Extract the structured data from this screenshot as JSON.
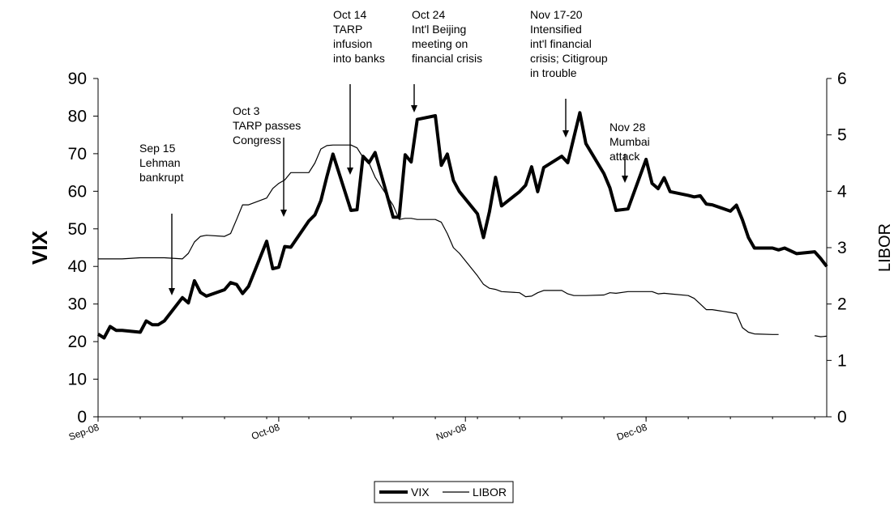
{
  "chart_data": {
    "type": "line",
    "title": "",
    "x_ticks": [
      "Sep-08",
      "Oct-08",
      "Nov-08",
      "Dec-08"
    ],
    "left_axis": {
      "label": "VIX",
      "ylim": [
        0,
        90
      ],
      "ticks": [
        "0",
        "10",
        "20",
        "30",
        "40",
        "50",
        "60",
        "70",
        "80",
        "90"
      ]
    },
    "right_axis": {
      "label": "LIBOR",
      "ylim": [
        0,
        6
      ],
      "ticks": [
        "0",
        "1",
        "2",
        "3",
        "4",
        "5",
        "6"
      ]
    },
    "legend": {
      "placement": "bottom-center"
    },
    "series": [
      {
        "name": "VIX",
        "axis": "left",
        "style": "thick",
        "points": [
          [
            "2008-09-01",
            22
          ],
          [
            "2008-09-02",
            21
          ],
          [
            "2008-09-03",
            24
          ],
          [
            "2008-09-04",
            23
          ],
          [
            "2008-09-05",
            23
          ],
          [
            "2008-09-08",
            22.5
          ],
          [
            "2008-09-09",
            25.5
          ],
          [
            "2008-09-10",
            24.5
          ],
          [
            "2008-09-11",
            24.5
          ],
          [
            "2008-09-12",
            25.5
          ],
          [
            "2008-09-15",
            31.7
          ],
          [
            "2008-09-16",
            30.3
          ],
          [
            "2008-09-17",
            36.2
          ],
          [
            "2008-09-18",
            33.1
          ],
          [
            "2008-09-19",
            32.1
          ],
          [
            "2008-09-22",
            33.8
          ],
          [
            "2008-09-23",
            35.7
          ],
          [
            "2008-09-24",
            35.2
          ],
          [
            "2008-09-25",
            32.8
          ],
          [
            "2008-09-26",
            34.7
          ],
          [
            "2008-09-29",
            46.7
          ],
          [
            "2008-09-30",
            39.4
          ],
          [
            "2008-10-01",
            39.8
          ],
          [
            "2008-10-02",
            45.3
          ],
          [
            "2008-10-03",
            45.1
          ],
          [
            "2008-10-06",
            52.1
          ],
          [
            "2008-10-07",
            53.7
          ],
          [
            "2008-10-08",
            57.5
          ],
          [
            "2008-10-09",
            63.9
          ],
          [
            "2008-10-10",
            69.9
          ],
          [
            "2008-10-13",
            54.9
          ],
          [
            "2008-10-14",
            55.1
          ],
          [
            "2008-10-15",
            69.3
          ],
          [
            "2008-10-16",
            67.6
          ],
          [
            "2008-10-17",
            70.3
          ],
          [
            "2008-10-20",
            53.1
          ],
          [
            "2008-10-21",
            53.1
          ],
          [
            "2008-10-22",
            69.7
          ],
          [
            "2008-10-23",
            67.8
          ],
          [
            "2008-10-24",
            79.1
          ],
          [
            "2008-10-27",
            80.1
          ],
          [
            "2008-10-28",
            66.9
          ],
          [
            "2008-10-29",
            69.9
          ],
          [
            "2008-10-30",
            62.9
          ],
          [
            "2008-10-31",
            59.9
          ],
          [
            "2008-11-03",
            54.0
          ],
          [
            "2008-11-04",
            47.7
          ],
          [
            "2008-11-05",
            54.6
          ],
          [
            "2008-11-06",
            63.7
          ],
          [
            "2008-11-07",
            56.1
          ],
          [
            "2008-11-10",
            59.9
          ],
          [
            "2008-11-11",
            61.6
          ],
          [
            "2008-11-12",
            66.5
          ],
          [
            "2008-11-13",
            59.9
          ],
          [
            "2008-11-14",
            66.3
          ],
          [
            "2008-11-17",
            69.3
          ],
          [
            "2008-11-18",
            67.6
          ],
          [
            "2008-11-19",
            74.3
          ],
          [
            "2008-11-20",
            80.9
          ],
          [
            "2008-11-21",
            72.7
          ],
          [
            "2008-11-24",
            64.7
          ],
          [
            "2008-11-25",
            60.9
          ],
          [
            "2008-11-26",
            54.9
          ],
          [
            "2008-11-28",
            55.3
          ],
          [
            "2008-12-01",
            68.5
          ],
          [
            "2008-12-02",
            62.1
          ],
          [
            "2008-12-03",
            60.7
          ],
          [
            "2008-12-04",
            63.6
          ],
          [
            "2008-12-05",
            59.9
          ],
          [
            "2008-12-08",
            58.9
          ],
          [
            "2008-12-09",
            58.5
          ],
          [
            "2008-12-10",
            58.8
          ],
          [
            "2008-12-11",
            56.6
          ],
          [
            "2008-12-12",
            56.4
          ],
          [
            "2008-12-15",
            54.7
          ],
          [
            "2008-12-16",
            56.3
          ],
          [
            "2008-12-17",
            52.4
          ],
          [
            "2008-12-18",
            47.7
          ],
          [
            "2008-12-19",
            44.9
          ],
          [
            "2008-12-22",
            44.9
          ],
          [
            "2008-12-23",
            44.4
          ],
          [
            "2008-12-24",
            44.9
          ],
          [
            "2008-12-26",
            43.4
          ],
          [
            "2008-12-29",
            43.9
          ],
          [
            "2008-12-30",
            42.1
          ],
          [
            "2008-12-31",
            40.0
          ]
        ]
      },
      {
        "name": "LIBOR",
        "axis": "right",
        "style": "thin",
        "segments": [
          [
            [
              "2008-09-01",
              2.8
            ],
            [
              "2008-09-05",
              2.8
            ],
            [
              "2008-09-08",
              2.82
            ],
            [
              "2008-09-12",
              2.82
            ],
            [
              "2008-09-15",
              2.8
            ],
            [
              "2008-09-16",
              2.9
            ],
            [
              "2008-09-17",
              3.1
            ],
            [
              "2008-09-18",
              3.2
            ],
            [
              "2008-09-19",
              3.22
            ],
            [
              "2008-09-22",
              3.2
            ],
            [
              "2008-09-23",
              3.25
            ],
            [
              "2008-09-24",
              3.5
            ],
            [
              "2008-09-25",
              3.76
            ],
            [
              "2008-09-26",
              3.76
            ],
            [
              "2008-09-29",
              3.88
            ],
            [
              "2008-09-30",
              4.05
            ],
            [
              "2008-10-01",
              4.14
            ],
            [
              "2008-10-02",
              4.2
            ],
            [
              "2008-10-03",
              4.33
            ],
            [
              "2008-10-06",
              4.33
            ],
            [
              "2008-10-07",
              4.5
            ],
            [
              "2008-10-08",
              4.75
            ],
            [
              "2008-10-09",
              4.81
            ],
            [
              "2008-10-10",
              4.82
            ],
            [
              "2008-10-13",
              4.82
            ],
            [
              "2008-10-14",
              4.77
            ],
            [
              "2008-10-15",
              4.6
            ],
            [
              "2008-10-16",
              4.5
            ],
            [
              "2008-10-17",
              4.25
            ],
            [
              "2008-10-20",
              3.75
            ],
            [
              "2008-10-21",
              3.5
            ],
            [
              "2008-10-22",
              3.52
            ],
            [
              "2008-10-23",
              3.52
            ],
            [
              "2008-10-24",
              3.5
            ],
            [
              "2008-10-27",
              3.5
            ],
            [
              "2008-10-28",
              3.45
            ],
            [
              "2008-10-29",
              3.25
            ],
            [
              "2008-10-30",
              3.0
            ],
            [
              "2008-10-31",
              2.9
            ],
            [
              "2008-11-03",
              2.5
            ],
            [
              "2008-11-04",
              2.35
            ],
            [
              "2008-11-05",
              2.28
            ],
            [
              "2008-11-06",
              2.26
            ],
            [
              "2008-11-07",
              2.22
            ],
            [
              "2008-11-10",
              2.2
            ],
            [
              "2008-11-11",
              2.13
            ],
            [
              "2008-11-12",
              2.14
            ],
            [
              "2008-11-13",
              2.2
            ],
            [
              "2008-11-14",
              2.24
            ],
            [
              "2008-11-17",
              2.24
            ],
            [
              "2008-11-18",
              2.18
            ],
            [
              "2008-11-19",
              2.15
            ],
            [
              "2008-11-20",
              2.15
            ],
            [
              "2008-11-21",
              2.15
            ],
            [
              "2008-11-24",
              2.16
            ],
            [
              "2008-11-25",
              2.2
            ],
            [
              "2008-11-26",
              2.19
            ],
            [
              "2008-11-28",
              2.22
            ],
            [
              "2008-12-01",
              2.22
            ],
            [
              "2008-12-02",
              2.22
            ],
            [
              "2008-12-03",
              2.18
            ],
            [
              "2008-12-04",
              2.19
            ],
            [
              "2008-12-05",
              2.18
            ],
            [
              "2008-12-08",
              2.15
            ],
            [
              "2008-12-09",
              2.1
            ],
            [
              "2008-12-10",
              2.0
            ],
            [
              "2008-12-11",
              1.9
            ],
            [
              "2008-12-12",
              1.9
            ],
            [
              "2008-12-15",
              1.85
            ],
            [
              "2008-12-16",
              1.83
            ],
            [
              "2008-12-17",
              1.58
            ],
            [
              "2008-12-18",
              1.5
            ],
            [
              "2008-12-19",
              1.47
            ],
            [
              "2008-12-22",
              1.46
            ],
            [
              "2008-12-23",
              1.46
            ]
          ],
          [
            [
              "2008-12-29",
              1.44
            ],
            [
              "2008-12-30",
              1.42
            ],
            [
              "2008-12-31",
              1.43
            ]
          ]
        ]
      }
    ],
    "annotations": [
      {
        "lines": [
          "Sep 15",
          "Lehman",
          "bankrupt"
        ],
        "date": "2008-09-15"
      },
      {
        "lines": [
          "Oct 3",
          "TARP passes",
          "Congress"
        ],
        "date": "2008-10-03"
      },
      {
        "lines": [
          "Oct 14",
          "TARP",
          "infusion",
          "into banks"
        ],
        "date": "2008-10-14"
      },
      {
        "lines": [
          "Oct 24",
          "Int'l Beijing",
          "meeting on",
          "financial crisis"
        ],
        "date": "2008-10-24"
      },
      {
        "lines": [
          "Nov 17-20",
          "Intensified",
          "int'l financial",
          "crisis; Citigroup",
          "in trouble"
        ],
        "date": "2008-11-20"
      },
      {
        "lines": [
          "Nov 28",
          "Mumbai",
          "attack"
        ],
        "date": "2008-11-28"
      }
    ]
  }
}
